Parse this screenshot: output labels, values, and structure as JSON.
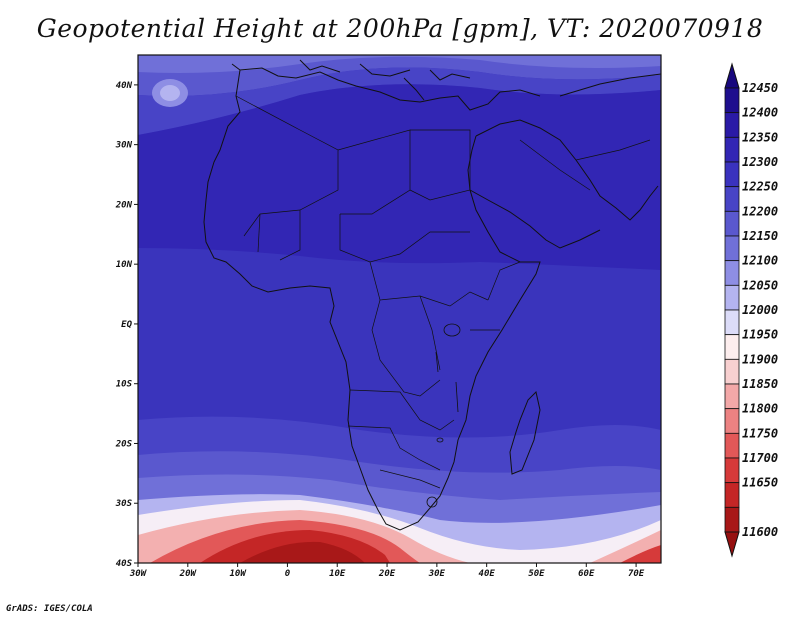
{
  "title": "Geopotential Height at 200hPa [gpm], VT: 2020070918",
  "credit": "GrADS: IGES/COLA",
  "map": {
    "lat_labels": [
      "40N",
      "30N",
      "20N",
      "10N",
      "EQ",
      "10S",
      "20S",
      "30S",
      "40S"
    ],
    "lon_labels": [
      "30W",
      "20W",
      "10W",
      "0",
      "10E",
      "20E",
      "30E",
      "40E",
      "50E",
      "60E",
      "70E"
    ],
    "lat_range": [
      -40,
      45
    ],
    "lon_range": [
      -30,
      75
    ]
  },
  "colorbar": {
    "levels": [
      "12450",
      "12400",
      "12350",
      "12300",
      "12250",
      "12200",
      "12150",
      "12100",
      "12050",
      "12000",
      "11950",
      "11900",
      "11850",
      "11800",
      "11750",
      "11700",
      "11650",
      "11600"
    ],
    "colors": [
      "#1e0e8e",
      "#2a1aa6",
      "#3226b4",
      "#3a32be",
      "#4844c6",
      "#5a58ce",
      "#7070d8",
      "#8e8ee4",
      "#b4b4f0",
      "#dcdcf8",
      "#fdeeee",
      "#f8d0d0",
      "#f3a8a8",
      "#ec8282",
      "#e25858",
      "#d63a3a",
      "#c42626",
      "#a81818"
    ],
    "top_arrow_color": "#18087e",
    "bottom_arrow_color": "#961010"
  }
}
